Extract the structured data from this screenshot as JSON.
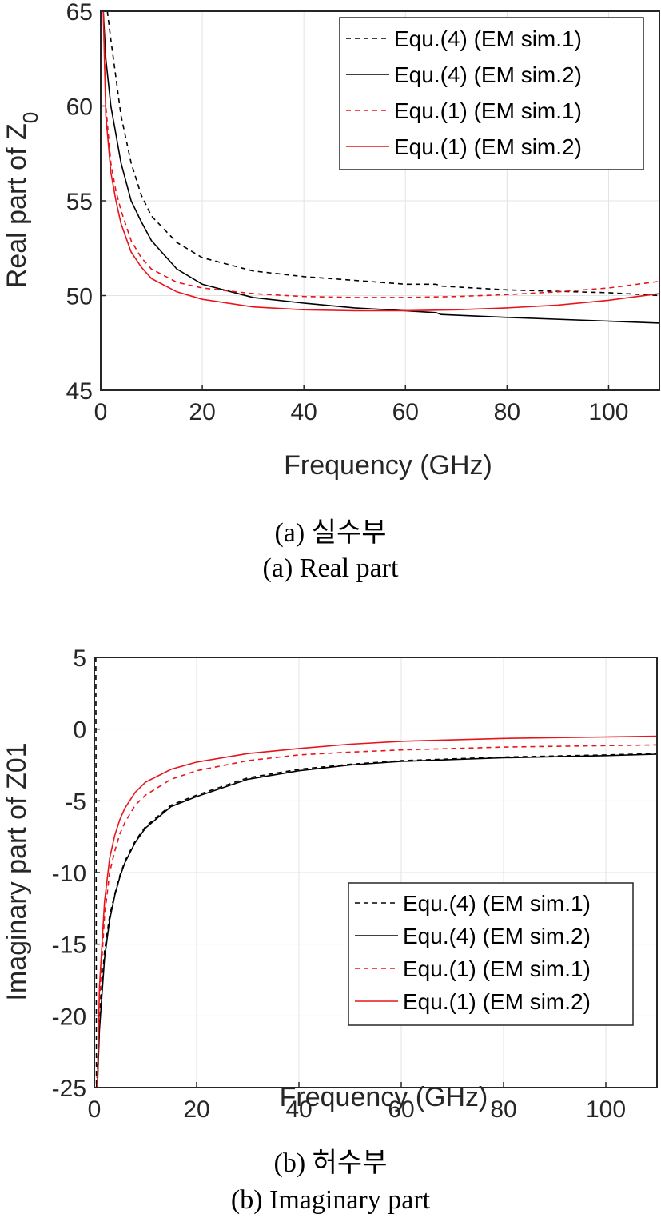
{
  "chart_data": [
    {
      "type": "line",
      "xlabel": "Frequency (GHz)",
      "ylabel": "Real part of Z",
      "ylabel_sub": "0",
      "xlim": [
        0,
        110
      ],
      "ylim": [
        45,
        65
      ],
      "xticks": [
        0,
        20,
        40,
        60,
        80,
        100
      ],
      "yticks": [
        45,
        50,
        55,
        60,
        65
      ],
      "grid": true,
      "legend_position": "top-right",
      "captions": [
        "(a) 실수부",
        "(a) Real part"
      ],
      "series": [
        {
          "name": "Equ.(4) (EM sim.1)",
          "color": "#000000",
          "dash": "dashed",
          "x": [
            1.3,
            2,
            3,
            4,
            6,
            8,
            10,
            15,
            20,
            30,
            40,
            50,
            60,
            66,
            67,
            80,
            100,
            110
          ],
          "y": [
            65,
            63.5,
            61.5,
            59.5,
            57,
            55.3,
            54.2,
            52.8,
            52.0,
            51.3,
            51.0,
            50.8,
            50.6,
            50.6,
            50.5,
            50.3,
            50.15,
            50.0
          ]
        },
        {
          "name": "Equ.(4) (EM sim.2)",
          "color": "#000000",
          "dash": "solid",
          "x": [
            0.5,
            1,
            2,
            3,
            4,
            6,
            8,
            10,
            15,
            20,
            30,
            40,
            50,
            60,
            66,
            67,
            80,
            100,
            110
          ],
          "y": [
            65,
            62.5,
            60,
            58.5,
            57,
            55,
            53.9,
            52.9,
            51.4,
            50.6,
            49.9,
            49.6,
            49.35,
            49.2,
            49.1,
            49.0,
            48.85,
            48.65,
            48.55
          ]
        },
        {
          "name": "Equ.(1) (EM sim.1)",
          "color": "#e8141c",
          "dash": "dashed",
          "x": [
            0.5,
            1,
            2,
            3,
            4,
            6,
            8,
            10,
            15,
            20,
            30,
            40,
            50,
            60,
            70,
            80,
            90,
            100,
            110
          ],
          "y": [
            65,
            60,
            57,
            55.5,
            54.5,
            52.9,
            52.0,
            51.4,
            50.7,
            50.4,
            50.1,
            49.95,
            49.9,
            49.9,
            49.95,
            50.05,
            50.2,
            50.4,
            50.75
          ]
        },
        {
          "name": "Equ.(1) (EM sim.2)",
          "color": "#e8141c",
          "dash": "solid",
          "x": [
            0.5,
            1,
            2,
            3,
            4,
            6,
            8,
            10,
            15,
            20,
            30,
            40,
            50,
            60,
            70,
            80,
            90,
            100,
            110
          ],
          "y": [
            65,
            59.5,
            56.5,
            55,
            53.8,
            52.3,
            51.5,
            50.9,
            50.2,
            49.8,
            49.4,
            49.25,
            49.2,
            49.2,
            49.25,
            49.35,
            49.5,
            49.75,
            50.1
          ]
        }
      ]
    },
    {
      "type": "line",
      "xlabel": "Frequency (GHz)",
      "ylabel": "Imaginary part of Z01",
      "xlim": [
        0,
        110
      ],
      "ylim": [
        -25,
        5
      ],
      "xticks": [
        0,
        20,
        40,
        60,
        80,
        100
      ],
      "yticks": [
        -25,
        -20,
        -15,
        -10,
        -5,
        0,
        5
      ],
      "grid": true,
      "legend_position": "bottom-right",
      "captions": [
        "(b) 허수부",
        "(b) Imaginary part"
      ],
      "series": [
        {
          "name": "Equ.(4) (EM sim.1)",
          "color": "#000000",
          "dash": "dashed",
          "x": [
            0.3,
            0.4,
            0.6,
            1,
            2,
            3,
            4,
            5,
            6,
            8,
            10,
            15,
            20,
            30,
            40,
            50,
            60,
            80,
            100,
            110
          ],
          "y": [
            5,
            -25,
            -24,
            -20,
            -15.5,
            -13,
            -11.5,
            -10.2,
            -9.2,
            -7.8,
            -6.8,
            -5.3,
            -4.6,
            -3.4,
            -2.8,
            -2.45,
            -2.2,
            -1.95,
            -1.8,
            -1.7
          ]
        },
        {
          "name": "Equ.(4) (EM sim.2)",
          "color": "#000000",
          "dash": "solid",
          "x": [
            0.6,
            1,
            2,
            3,
            4,
            5,
            6,
            8,
            10,
            15,
            20,
            30,
            40,
            50,
            60,
            80,
            100,
            110
          ],
          "y": [
            -25,
            -21,
            -16,
            -13.3,
            -11.6,
            -10.3,
            -9.3,
            -7.9,
            -6.9,
            -5.4,
            -4.7,
            -3.5,
            -2.9,
            -2.5,
            -2.25,
            -2.0,
            -1.85,
            -1.75
          ]
        },
        {
          "name": "Equ.(1) (EM sim.1)",
          "color": "#e8141c",
          "dash": "dashed",
          "x": [
            0.6,
            1,
            2,
            3,
            4,
            5,
            6,
            8,
            10,
            15,
            20,
            30,
            40,
            50,
            60,
            80,
            100,
            110
          ],
          "y": [
            -25,
            -19,
            -13,
            -10,
            -8.5,
            -7.3,
            -6.5,
            -5.3,
            -4.6,
            -3.5,
            -2.9,
            -2.2,
            -1.8,
            -1.6,
            -1.45,
            -1.25,
            -1.15,
            -1.1
          ]
        },
        {
          "name": "Equ.(1) (EM sim.2)",
          "color": "#e8141c",
          "dash": "solid",
          "x": [
            0.6,
            1,
            2,
            3,
            4,
            5,
            6,
            8,
            10,
            15,
            20,
            30,
            40,
            50,
            60,
            80,
            100,
            110
          ],
          "y": [
            -25,
            -18,
            -12,
            -9,
            -7.4,
            -6.3,
            -5.5,
            -4.4,
            -3.7,
            -2.8,
            -2.3,
            -1.7,
            -1.35,
            -1.05,
            -0.85,
            -0.65,
            -0.55,
            -0.5
          ]
        }
      ]
    }
  ]
}
